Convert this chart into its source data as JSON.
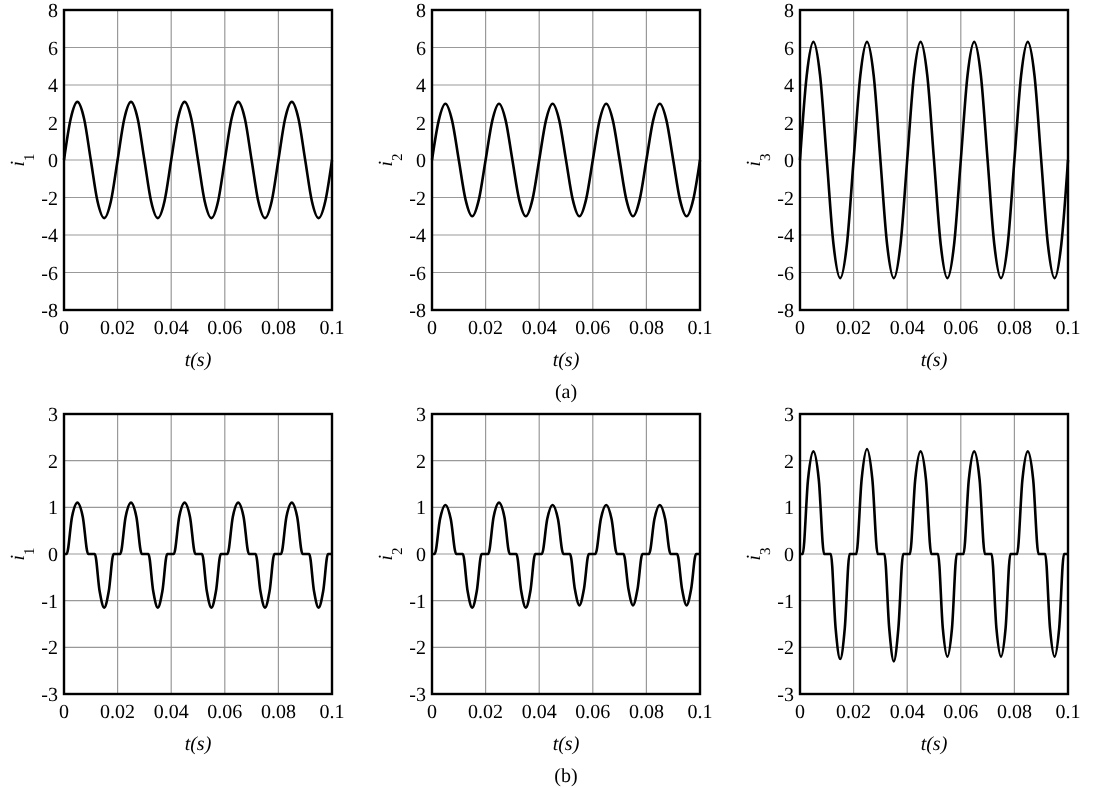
{
  "chart_data": [
    {
      "type": "line",
      "xlabel": "t(s)",
      "ylabel": "i$_{1}$",
      "x": [
        0,
        0.0025,
        0.005,
        0.0075,
        0.01,
        0.0125,
        0.015,
        0.0175,
        0.02,
        0.0225,
        0.025,
        0.0275,
        0.03,
        0.0325,
        0.035,
        0.0375,
        0.04,
        0.0425,
        0.045,
        0.0475,
        0.05,
        0.0525,
        0.055,
        0.0575,
        0.06,
        0.0625,
        0.065,
        0.0675,
        0.07,
        0.0725,
        0.075,
        0.0775,
        0.08,
        0.0825,
        0.085,
        0.0875,
        0.09,
        0.0925,
        0.095,
        0.0975,
        0.1
      ],
      "series": [
        {
          "color": "#000000",
          "values": [
            0,
            2.2,
            3.1,
            2.2,
            0,
            -2.2,
            -3.1,
            -2.2,
            0,
            2.2,
            3.1,
            2.2,
            0,
            -2.2,
            -3.1,
            -2.2,
            0,
            2.2,
            3.1,
            2.2,
            0,
            -2.2,
            -3.1,
            -2.2,
            0,
            2.2,
            3.1,
            2.2,
            0,
            -2.2,
            -3.1,
            -2.2,
            0,
            2.2,
            3.1,
            2.2,
            0,
            -2.2,
            -3.1,
            -2.2,
            0
          ]
        }
      ],
      "xlim": [
        0,
        0.1
      ],
      "xticks": [
        0,
        0.02,
        0.04,
        0.06,
        0.08,
        0.1
      ],
      "ylim": [
        -8,
        8
      ],
      "yticks": [
        -8,
        -6,
        -4,
        -2,
        0,
        2,
        4,
        6,
        8
      ],
      "grid": true
    },
    {
      "type": "line",
      "xlabel": "t(s)",
      "ylabel": "i$_{2}$",
      "annotations": [
        "(a)"
      ],
      "x": [
        0,
        0.0025,
        0.005,
        0.0075,
        0.01,
        0.0125,
        0.015,
        0.0175,
        0.02,
        0.0225,
        0.025,
        0.0275,
        0.03,
        0.0325,
        0.035,
        0.0375,
        0.04,
        0.0425,
        0.045,
        0.0475,
        0.05,
        0.0525,
        0.055,
        0.0575,
        0.06,
        0.0625,
        0.065,
        0.0675,
        0.07,
        0.0725,
        0.075,
        0.0775,
        0.08,
        0.0825,
        0.085,
        0.0875,
        0.09,
        0.0925,
        0.095,
        0.0975,
        0.1
      ],
      "series": [
        {
          "color": "#000000",
          "values": [
            0,
            2.1,
            3,
            2.1,
            0,
            -2.1,
            -3,
            -2.1,
            0,
            2.1,
            3,
            2.1,
            0,
            -2.1,
            -3,
            -2.1,
            0,
            2.1,
            3,
            2.1,
            0,
            -2.1,
            -3,
            -2.1,
            0,
            2.1,
            3,
            2.1,
            0,
            -2.1,
            -3,
            -2.1,
            0,
            2.1,
            3,
            2.1,
            0,
            -2.1,
            -3,
            -2.1,
            0
          ]
        }
      ],
      "xlim": [
        0,
        0.1
      ],
      "xticks": [
        0,
        0.02,
        0.04,
        0.06,
        0.08,
        0.1
      ],
      "ylim": [
        -8,
        8
      ],
      "yticks": [
        -8,
        -6,
        -4,
        -2,
        0,
        2,
        4,
        6,
        8
      ],
      "grid": true
    },
    {
      "type": "line",
      "xlabel": "t(s)",
      "ylabel": "i$_{3}$",
      "x": [
        0,
        0.0025,
        0.005,
        0.0075,
        0.01,
        0.0125,
        0.015,
        0.0175,
        0.02,
        0.0225,
        0.025,
        0.0275,
        0.03,
        0.0325,
        0.035,
        0.0375,
        0.04,
        0.0425,
        0.045,
        0.0475,
        0.05,
        0.0525,
        0.055,
        0.0575,
        0.06,
        0.0625,
        0.065,
        0.0675,
        0.07,
        0.0725,
        0.075,
        0.0775,
        0.08,
        0.0825,
        0.085,
        0.0875,
        0.09,
        0.0925,
        0.095,
        0.0975,
        0.1
      ],
      "series": [
        {
          "color": "#000000",
          "values": [
            0,
            4.5,
            6.3,
            4.5,
            0,
            -4.5,
            -6.3,
            -4.5,
            0,
            4.5,
            6.3,
            4.5,
            0,
            -4.5,
            -6.3,
            -4.5,
            0,
            4.5,
            6.3,
            4.5,
            0,
            -4.5,
            -6.3,
            -4.5,
            0,
            4.5,
            6.3,
            4.5,
            0,
            -4.5,
            -6.3,
            -4.5,
            0,
            4.5,
            6.3,
            4.5,
            0,
            -4.5,
            -6.3,
            -4.5,
            0
          ]
        }
      ],
      "xlim": [
        0,
        0.1
      ],
      "xticks": [
        0,
        0.02,
        0.04,
        0.06,
        0.08,
        0.1
      ],
      "ylim": [
        -8,
        8
      ],
      "yticks": [
        -8,
        -6,
        -4,
        -2,
        0,
        2,
        4,
        6,
        8
      ],
      "grid": true
    },
    {
      "type": "line",
      "xlabel": "t(s)",
      "ylabel": "i$_{1}$",
      "x": [
        0,
        0.001,
        0.003,
        0.005,
        0.007,
        0.009,
        0.0115,
        0.0133,
        0.015,
        0.0167,
        0.0185,
        0.021,
        0.023,
        0.025,
        0.027,
        0.029,
        0.0315,
        0.0333,
        0.035,
        0.0367,
        0.0385,
        0.041,
        0.043,
        0.045,
        0.047,
        0.049,
        0.0515,
        0.0533,
        0.055,
        0.0567,
        0.0585,
        0.061,
        0.063,
        0.065,
        0.067,
        0.069,
        0.0715,
        0.0733,
        0.075,
        0.0767,
        0.0785,
        0.081,
        0.083,
        0.085,
        0.087,
        0.089,
        0.0915,
        0.0933,
        0.095,
        0.0967,
        0.0985,
        0.1
      ],
      "series": [
        {
          "color": "#000000",
          "values": [
            0,
            0,
            0.8,
            1.1,
            0.8,
            0,
            0,
            -0.8,
            -1.15,
            -0.8,
            0,
            0,
            0.8,
            1.1,
            0.8,
            0,
            0,
            -0.8,
            -1.15,
            -0.8,
            0,
            0,
            0.8,
            1.1,
            0.8,
            0,
            0,
            -0.8,
            -1.15,
            -0.8,
            0,
            0,
            0.8,
            1.1,
            0.8,
            0,
            0,
            -0.8,
            -1.15,
            -0.8,
            0,
            0,
            0.8,
            1.1,
            0.8,
            0,
            0,
            -0.8,
            -1.15,
            -0.8,
            0,
            0
          ]
        }
      ],
      "xlim": [
        0,
        0.1
      ],
      "xticks": [
        0,
        0.02,
        0.04,
        0.06,
        0.08,
        0.1
      ],
      "ylim": [
        -3,
        3
      ],
      "yticks": [
        -3,
        -2,
        -1,
        0,
        1,
        2,
        3
      ],
      "grid": true
    },
    {
      "type": "line",
      "xlabel": "t(s)",
      "ylabel": "i$_{2}$",
      "annotations": [
        "(b)"
      ],
      "x": [
        0,
        0.001,
        0.003,
        0.005,
        0.007,
        0.009,
        0.0115,
        0.0133,
        0.015,
        0.0167,
        0.0185,
        0.021,
        0.023,
        0.025,
        0.027,
        0.029,
        0.0315,
        0.0333,
        0.035,
        0.0367,
        0.0385,
        0.041,
        0.043,
        0.045,
        0.047,
        0.049,
        0.0515,
        0.0533,
        0.055,
        0.0567,
        0.0585,
        0.061,
        0.063,
        0.065,
        0.067,
        0.069,
        0.0715,
        0.0733,
        0.075,
        0.0767,
        0.0785,
        0.081,
        0.083,
        0.085,
        0.087,
        0.089,
        0.0915,
        0.0933,
        0.095,
        0.0967,
        0.0985,
        0.1
      ],
      "series": [
        {
          "color": "#000000",
          "values": [
            0,
            0,
            0.75,
            1.05,
            0.75,
            0,
            0,
            -0.8,
            -1.15,
            -0.8,
            0,
            0,
            0.8,
            1.1,
            0.8,
            0,
            0,
            -0.8,
            -1.15,
            -0.8,
            0,
            0,
            0.75,
            1.05,
            0.75,
            0,
            0,
            -0.75,
            -1.1,
            -0.75,
            0,
            0,
            0.75,
            1.05,
            0.75,
            0,
            0,
            -0.75,
            -1.1,
            -0.75,
            0,
            0,
            0.75,
            1.05,
            0.75,
            0,
            0,
            -0.75,
            -1.1,
            -0.75,
            0,
            0
          ]
        }
      ],
      "xlim": [
        0,
        0.1
      ],
      "xticks": [
        0,
        0.02,
        0.04,
        0.06,
        0.08,
        0.1
      ],
      "ylim": [
        -3,
        3
      ],
      "yticks": [
        -3,
        -2,
        -1,
        0,
        1,
        2,
        3
      ],
      "grid": true
    },
    {
      "type": "line",
      "xlabel": "t(s)",
      "ylabel": "i$_{3}$",
      "x": [
        0,
        0.001,
        0.003,
        0.005,
        0.007,
        0.009,
        0.0115,
        0.0133,
        0.015,
        0.0167,
        0.0185,
        0.021,
        0.023,
        0.025,
        0.027,
        0.029,
        0.0315,
        0.0333,
        0.035,
        0.0367,
        0.0385,
        0.041,
        0.043,
        0.045,
        0.047,
        0.049,
        0.0515,
        0.0533,
        0.055,
        0.0567,
        0.0585,
        0.061,
        0.063,
        0.065,
        0.067,
        0.069,
        0.0715,
        0.0733,
        0.075,
        0.0767,
        0.0785,
        0.081,
        0.083,
        0.085,
        0.087,
        0.089,
        0.0915,
        0.0933,
        0.095,
        0.0967,
        0.0985,
        0.1
      ],
      "series": [
        {
          "color": "#000000",
          "values": [
            0,
            0,
            1.6,
            2.2,
            1.6,
            0,
            0,
            -1.6,
            -2.25,
            -1.6,
            0,
            0,
            1.6,
            2.25,
            1.6,
            0,
            0,
            -1.6,
            -2.3,
            -1.6,
            0,
            0,
            1.6,
            2.2,
            1.6,
            0,
            0,
            -1.6,
            -2.2,
            -1.6,
            0,
            0,
            1.6,
            2.2,
            1.6,
            0,
            0,
            -1.6,
            -2.2,
            -1.6,
            0,
            0,
            1.6,
            2.2,
            1.6,
            0,
            0,
            -1.6,
            -2.2,
            -1.6,
            0,
            0
          ]
        }
      ],
      "xlim": [
        0,
        0.1
      ],
      "xticks": [
        0,
        0.02,
        0.04,
        0.06,
        0.08,
        0.1
      ],
      "ylim": [
        -3,
        3
      ],
      "yticks": [
        -3,
        -2,
        -1,
        0,
        1,
        2,
        3
      ],
      "grid": true
    }
  ]
}
